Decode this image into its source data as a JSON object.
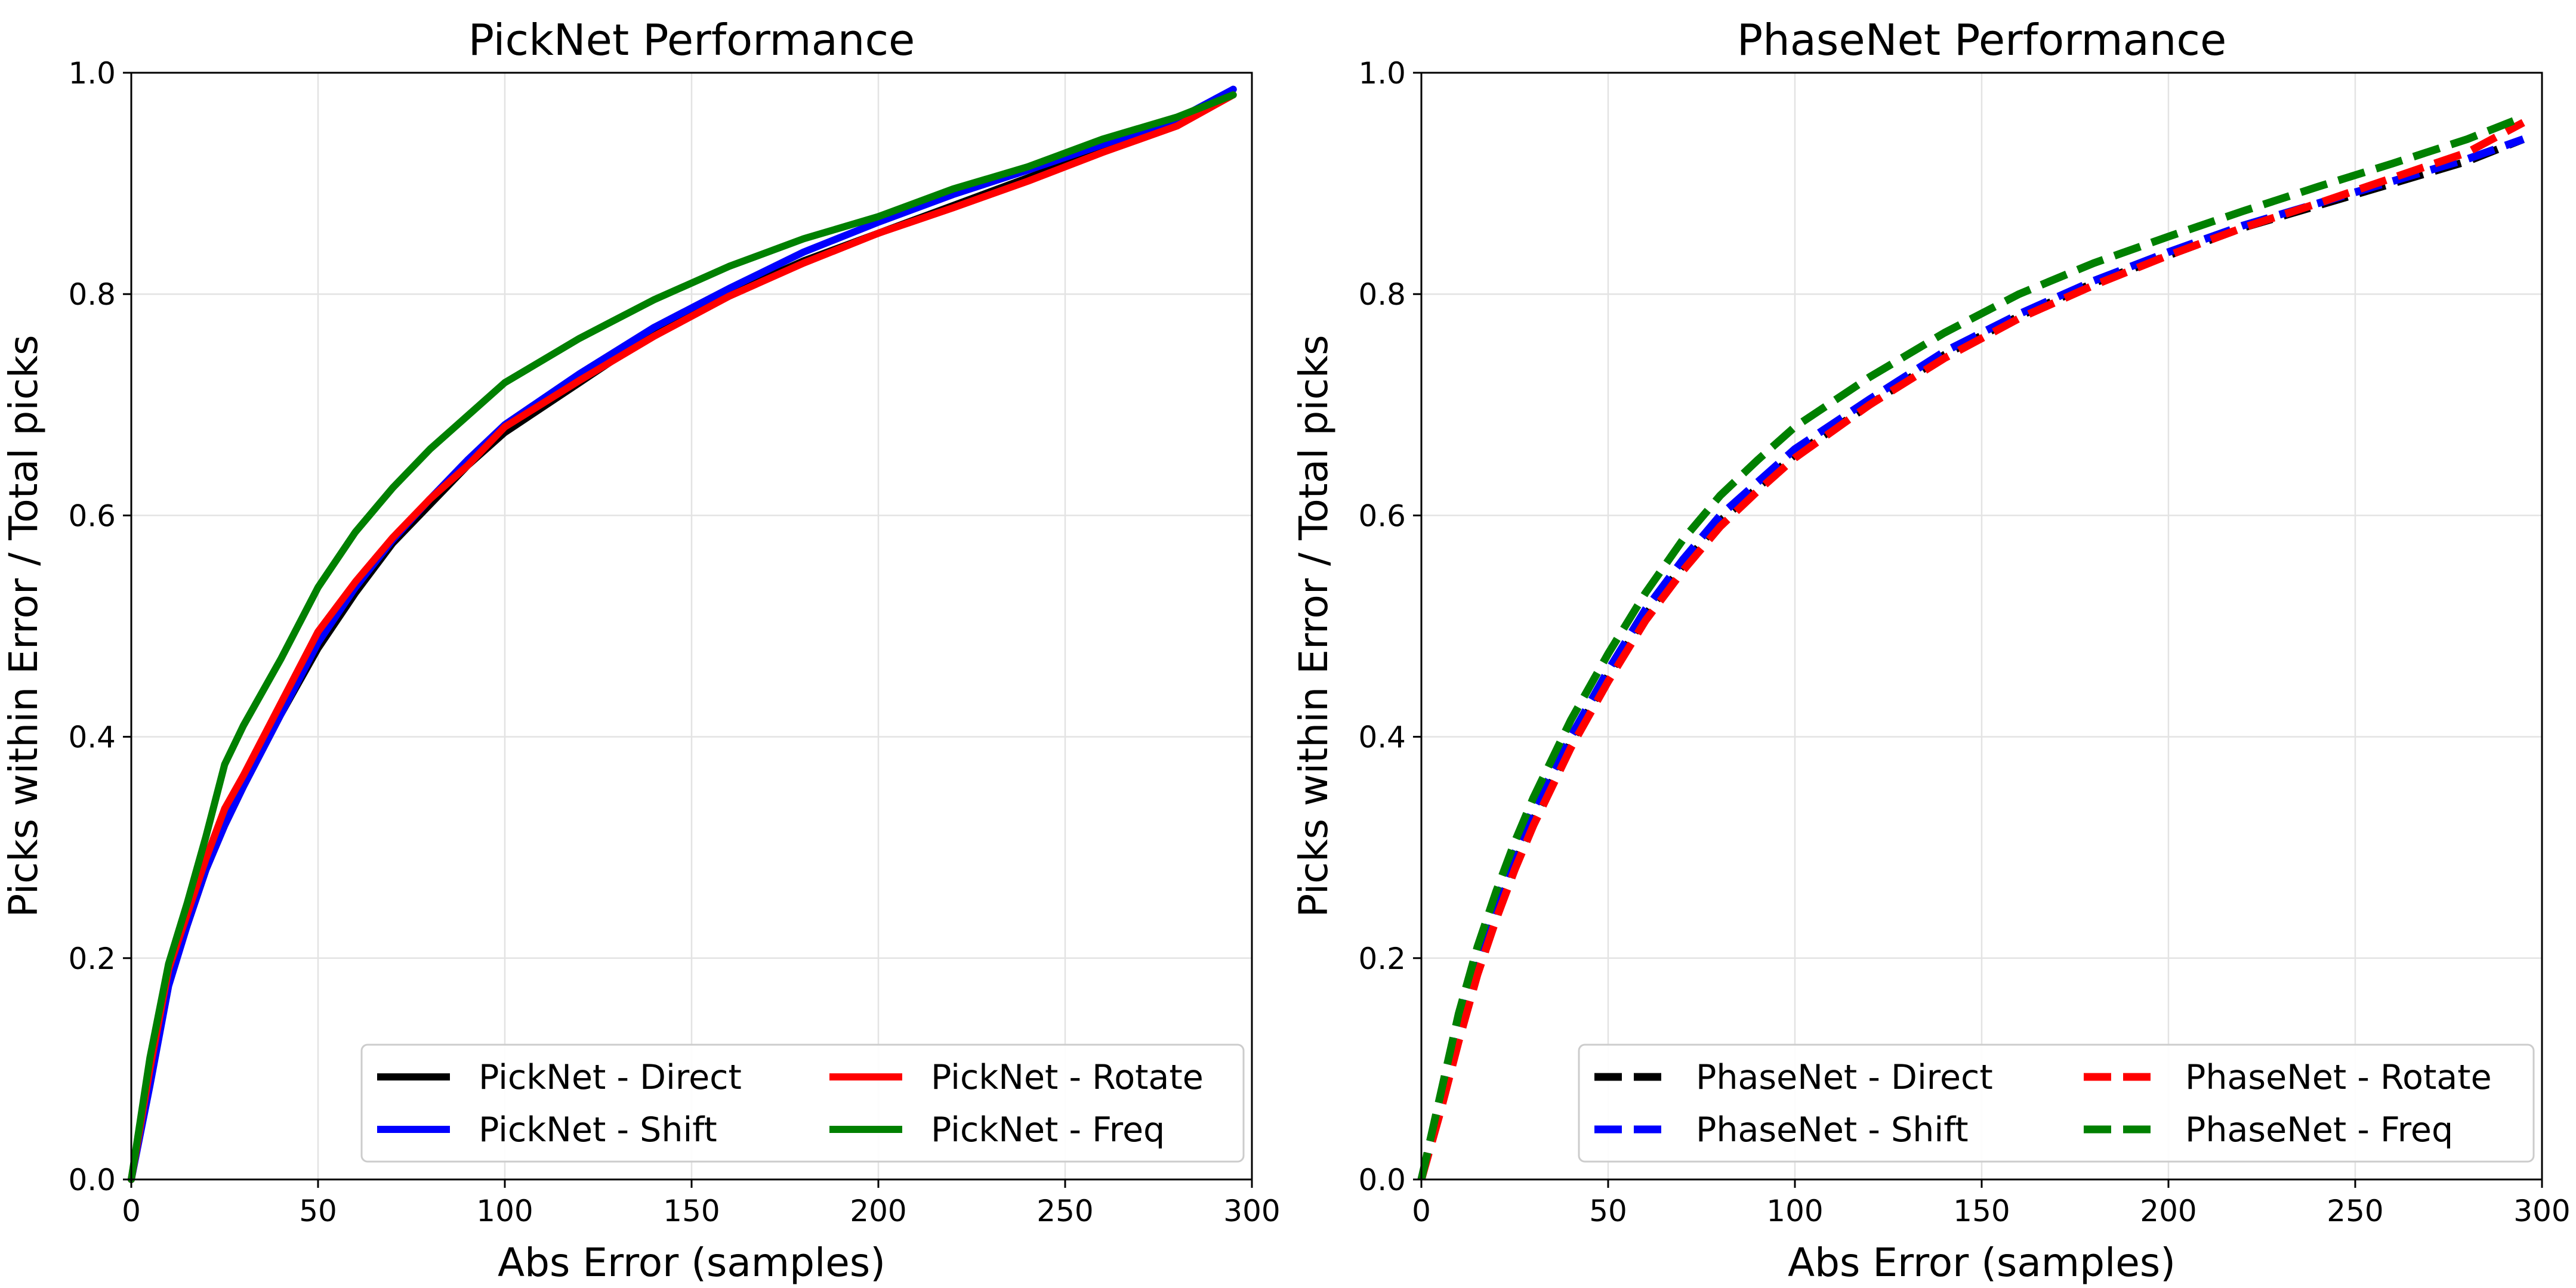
{
  "chart_data": [
    {
      "type": "line",
      "title": "PickNet Performance",
      "xlabel": "Abs Error (samples)",
      "ylabel": "Picks within Error / Total picks",
      "xlim": [
        0,
        300
      ],
      "ylim": [
        0,
        1.0
      ],
      "xticks": [
        "0",
        "50",
        "100",
        "150",
        "200",
        "250",
        "300"
      ],
      "yticks": [
        "0.0",
        "0.2",
        "0.4",
        "0.6",
        "0.8",
        "1.0"
      ],
      "grid": true,
      "legend_position": "lower-right",
      "line_style": "solid",
      "x": [
        0,
        5,
        10,
        15,
        20,
        25,
        30,
        40,
        50,
        60,
        70,
        80,
        90,
        100,
        120,
        140,
        160,
        180,
        200,
        220,
        240,
        260,
        280,
        295
      ],
      "series": [
        {
          "name": "PickNet - Direct",
          "color": "#000000",
          "values": [
            0,
            0.09,
            0.18,
            0.23,
            0.28,
            0.32,
            0.355,
            0.42,
            0.48,
            0.53,
            0.575,
            0.61,
            0.645,
            0.675,
            0.72,
            0.765,
            0.8,
            0.83,
            0.855,
            0.88,
            0.905,
            0.93,
            0.955,
            0.985
          ]
        },
        {
          "name": "PickNet - Shift",
          "color": "#0000ff",
          "values": [
            0,
            0.085,
            0.175,
            0.23,
            0.28,
            0.32,
            0.355,
            0.42,
            0.485,
            0.535,
            0.578,
            0.615,
            0.65,
            0.682,
            0.728,
            0.77,
            0.805,
            0.838,
            0.865,
            0.89,
            0.912,
            0.935,
            0.958,
            0.985
          ]
        },
        {
          "name": "PickNet - Rotate",
          "color": "#ff0000",
          "values": [
            0,
            0.1,
            0.19,
            0.24,
            0.29,
            0.335,
            0.365,
            0.43,
            0.495,
            0.54,
            0.58,
            0.615,
            0.645,
            0.68,
            0.722,
            0.762,
            0.798,
            0.828,
            0.855,
            0.878,
            0.902,
            0.928,
            0.952,
            0.98
          ]
        },
        {
          "name": "PickNet - Freq",
          "color": "#008000",
          "values": [
            0,
            0.11,
            0.195,
            0.25,
            0.31,
            0.375,
            0.41,
            0.47,
            0.535,
            0.585,
            0.625,
            0.66,
            0.69,
            0.72,
            0.76,
            0.795,
            0.825,
            0.85,
            0.87,
            0.895,
            0.915,
            0.94,
            0.96,
            0.98
          ]
        }
      ]
    },
    {
      "type": "line",
      "title": "PhaseNet Performance",
      "xlabel": "Abs Error (samples)",
      "ylabel": "Picks within Error / Total picks",
      "xlim": [
        0,
        300
      ],
      "ylim": [
        0,
        1.0
      ],
      "xticks": [
        "0",
        "50",
        "100",
        "150",
        "200",
        "250",
        "300"
      ],
      "yticks": [
        "0.0",
        "0.2",
        "0.4",
        "0.6",
        "0.8",
        "1.0"
      ],
      "grid": true,
      "legend_position": "lower-right",
      "line_style": "dashed",
      "x": [
        0,
        5,
        10,
        15,
        20,
        25,
        30,
        40,
        50,
        60,
        70,
        80,
        90,
        100,
        120,
        140,
        160,
        180,
        200,
        220,
        240,
        260,
        280,
        295
      ],
      "series": [
        {
          "name": "PhaseNet - Direct",
          "color": "#000000",
          "values": [
            0,
            0.065,
            0.13,
            0.19,
            0.24,
            0.285,
            0.325,
            0.395,
            0.455,
            0.51,
            0.555,
            0.595,
            0.625,
            0.655,
            0.7,
            0.745,
            0.78,
            0.81,
            0.835,
            0.86,
            0.88,
            0.9,
            0.92,
            0.94
          ]
        },
        {
          "name": "PhaseNet - Shift",
          "color": "#0000ff",
          "values": [
            0,
            0.07,
            0.14,
            0.2,
            0.25,
            0.295,
            0.335,
            0.4,
            0.46,
            0.515,
            0.56,
            0.6,
            0.63,
            0.66,
            0.705,
            0.748,
            0.782,
            0.812,
            0.838,
            0.862,
            0.882,
            0.902,
            0.922,
            0.94
          ]
        },
        {
          "name": "PhaseNet - Rotate",
          "color": "#ff0000",
          "values": [
            0,
            0.06,
            0.125,
            0.185,
            0.235,
            0.28,
            0.32,
            0.39,
            0.45,
            0.505,
            0.55,
            0.59,
            0.622,
            0.652,
            0.7,
            0.742,
            0.778,
            0.808,
            0.835,
            0.86,
            0.882,
            0.905,
            0.928,
            0.955
          ]
        },
        {
          "name": "PhaseNet - Freq",
          "color": "#008000",
          "values": [
            0,
            0.075,
            0.15,
            0.21,
            0.26,
            0.305,
            0.345,
            0.415,
            0.475,
            0.53,
            0.578,
            0.618,
            0.65,
            0.68,
            0.725,
            0.765,
            0.8,
            0.828,
            0.852,
            0.875,
            0.897,
            0.918,
            0.94,
            0.96
          ]
        }
      ]
    }
  ]
}
